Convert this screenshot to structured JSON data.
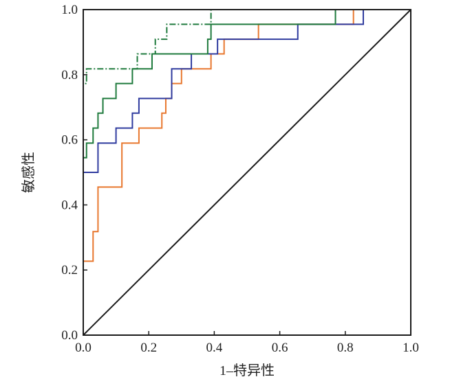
{
  "chart_data": {
    "type": "line",
    "title": "",
    "xlabel": "1–特异性",
    "ylabel": "敏感性",
    "xlim": [
      0,
      1
    ],
    "ylim": [
      0,
      1
    ],
    "x_ticks": [
      "0.0",
      "0.2",
      "0.4",
      "0.6",
      "0.8",
      "1.0"
    ],
    "y_ticks": [
      "0.0",
      "0.2",
      "0.4",
      "0.6",
      "0.8",
      "1.0"
    ],
    "grid": false,
    "legend": "none",
    "series": [
      {
        "color": "#E8772E",
        "dash": "solid",
        "points": [
          [
            0,
            0
          ],
          [
            0,
            0.227
          ],
          [
            0.03,
            0.227
          ],
          [
            0.03,
            0.318
          ],
          [
            0.045,
            0.318
          ],
          [
            0.045,
            0.455
          ],
          [
            0.118,
            0.455
          ],
          [
            0.118,
            0.59
          ],
          [
            0.17,
            0.59
          ],
          [
            0.17,
            0.636
          ],
          [
            0.24,
            0.636
          ],
          [
            0.24,
            0.682
          ],
          [
            0.252,
            0.682
          ],
          [
            0.252,
            0.727
          ],
          [
            0.27,
            0.727
          ],
          [
            0.27,
            0.773
          ],
          [
            0.3,
            0.773
          ],
          [
            0.3,
            0.818
          ],
          [
            0.39,
            0.818
          ],
          [
            0.39,
            0.864
          ],
          [
            0.43,
            0.864
          ],
          [
            0.43,
            0.909
          ],
          [
            0.535,
            0.909
          ],
          [
            0.535,
            0.955
          ],
          [
            0.825,
            0.955
          ],
          [
            0.825,
            1
          ],
          [
            1,
            1
          ]
        ]
      },
      {
        "color": "#2E3A9E",
        "dash": "solid",
        "points": [
          [
            0,
            0
          ],
          [
            0,
            0.5
          ],
          [
            0.045,
            0.5
          ],
          [
            0.045,
            0.59
          ],
          [
            0.1,
            0.59
          ],
          [
            0.1,
            0.636
          ],
          [
            0.15,
            0.636
          ],
          [
            0.15,
            0.682
          ],
          [
            0.17,
            0.682
          ],
          [
            0.17,
            0.727
          ],
          [
            0.27,
            0.727
          ],
          [
            0.27,
            0.818
          ],
          [
            0.33,
            0.818
          ],
          [
            0.33,
            0.864
          ],
          [
            0.41,
            0.864
          ],
          [
            0.41,
            0.909
          ],
          [
            0.655,
            0.909
          ],
          [
            0.655,
            0.955
          ],
          [
            0.855,
            0.955
          ],
          [
            0.855,
            1
          ],
          [
            1,
            1
          ]
        ]
      },
      {
        "color": "#1E7A3C",
        "dash": "solid",
        "points": [
          [
            0,
            0
          ],
          [
            0,
            0.545
          ],
          [
            0.01,
            0.545
          ],
          [
            0.01,
            0.59
          ],
          [
            0.03,
            0.59
          ],
          [
            0.03,
            0.636
          ],
          [
            0.045,
            0.636
          ],
          [
            0.045,
            0.682
          ],
          [
            0.06,
            0.682
          ],
          [
            0.06,
            0.727
          ],
          [
            0.1,
            0.727
          ],
          [
            0.1,
            0.773
          ],
          [
            0.15,
            0.773
          ],
          [
            0.15,
            0.818
          ],
          [
            0.21,
            0.818
          ],
          [
            0.21,
            0.864
          ],
          [
            0.38,
            0.864
          ],
          [
            0.38,
            0.909
          ],
          [
            0.39,
            0.909
          ],
          [
            0.39,
            0.955
          ],
          [
            0.77,
            0.955
          ],
          [
            0.77,
            1
          ],
          [
            1,
            1
          ]
        ]
      },
      {
        "color": "#1E7A3C",
        "dash": "dashdot",
        "points": [
          [
            0,
            0
          ],
          [
            0,
            0.773
          ],
          [
            0.01,
            0.773
          ],
          [
            0.01,
            0.818
          ],
          [
            0.165,
            0.818
          ],
          [
            0.165,
            0.864
          ],
          [
            0.22,
            0.864
          ],
          [
            0.22,
            0.909
          ],
          [
            0.255,
            0.909
          ],
          [
            0.255,
            0.955
          ],
          [
            0.39,
            0.955
          ],
          [
            0.39,
            1
          ],
          [
            1,
            1
          ]
        ]
      },
      {
        "color": "#1a1a1a",
        "dash": "solid",
        "points": [
          [
            0,
            0
          ],
          [
            1,
            1
          ]
        ]
      }
    ]
  }
}
